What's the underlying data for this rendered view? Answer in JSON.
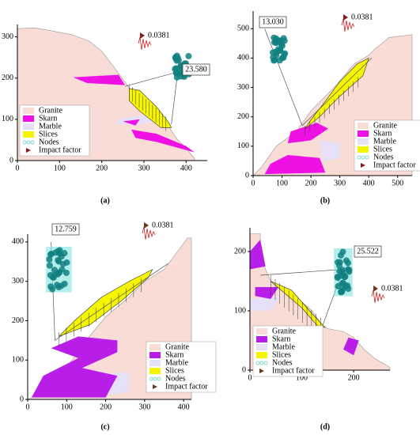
{
  "chart_data": [
    {
      "type": "slope",
      "panel": "(a)",
      "xlim": [
        0,
        450
      ],
      "ylim": [
        0,
        330
      ],
      "xticks": [
        0,
        100,
        200,
        300,
        400
      ],
      "yticks": [
        0,
        100,
        200,
        300
      ],
      "safety_factor": "23.580",
      "impact_factor": "0.0381",
      "legend": [
        {
          "name": "Granite",
          "color": "#f9dcd5"
        },
        {
          "name": "Skarn",
          "color": "#ee10e4"
        },
        {
          "name": "Marble",
          "color": "#e6e0f8"
        },
        {
          "name": "Slices",
          "color": "#f6f500"
        },
        {
          "name": "Nodes",
          "color": "#118080"
        },
        {
          "name": "Impact factor",
          "color": "#8b1a1a"
        }
      ]
    },
    {
      "type": "slope",
      "panel": "(b)",
      "xlim": [
        0,
        550
      ],
      "ylim": [
        0,
        560
      ],
      "xticks": [
        0,
        100,
        200,
        300,
        400,
        500
      ],
      "yticks": [
        0,
        100,
        200,
        300,
        400,
        500
      ],
      "safety_factor": "13.030",
      "impact_factor": "0.0381",
      "legend": [
        {
          "name": "Granite",
          "color": "#f9dcd5"
        },
        {
          "name": "Skarn",
          "color": "#ee10e4"
        },
        {
          "name": "Marble",
          "color": "#e6e0f8"
        },
        {
          "name": "Slices",
          "color": "#f6f500"
        },
        {
          "name": "Nodes",
          "color": "#118080"
        },
        {
          "name": "Impact factor",
          "color": "#8b1a1a"
        }
      ]
    },
    {
      "type": "slope",
      "panel": "(c)",
      "xlim": [
        0,
        420
      ],
      "ylim": [
        0,
        420
      ],
      "xticks": [
        0,
        100,
        200,
        300,
        400
      ],
      "yticks": [
        0,
        100,
        200,
        300,
        400
      ],
      "safety_factor": "12.759",
      "impact_factor": "0.0381",
      "legend": [
        {
          "name": "Granite",
          "color": "#f9dcd5"
        },
        {
          "name": "Skarn",
          "color": "#b81ee8"
        },
        {
          "name": "Marble",
          "color": "#e6e0f8"
        },
        {
          "name": "Slices",
          "color": "#f6f500"
        },
        {
          "name": "Nodes",
          "color": "#118080"
        },
        {
          "name": "Impact factor",
          "color": "#6b3a1a"
        }
      ]
    },
    {
      "type": "slope",
      "panel": "(d)",
      "xlim": [
        0,
        270
      ],
      "ylim": [
        0,
        240
      ],
      "xticks": [
        0,
        100,
        200
      ],
      "yticks": [
        0,
        100,
        200
      ],
      "safety_factor": "25.522",
      "impact_factor": "0.0381",
      "legend": [
        {
          "name": "Granite",
          "color": "#f9dcd5"
        },
        {
          "name": "Skarn",
          "color": "#b81ee8"
        },
        {
          "name": "Marble",
          "color": "#e6e0f8"
        },
        {
          "name": "Slices",
          "color": "#f6f500"
        },
        {
          "name": "Nodes",
          "color": "#118080"
        },
        {
          "name": "Impact factor",
          "color": "#6b3a1a"
        }
      ]
    }
  ]
}
